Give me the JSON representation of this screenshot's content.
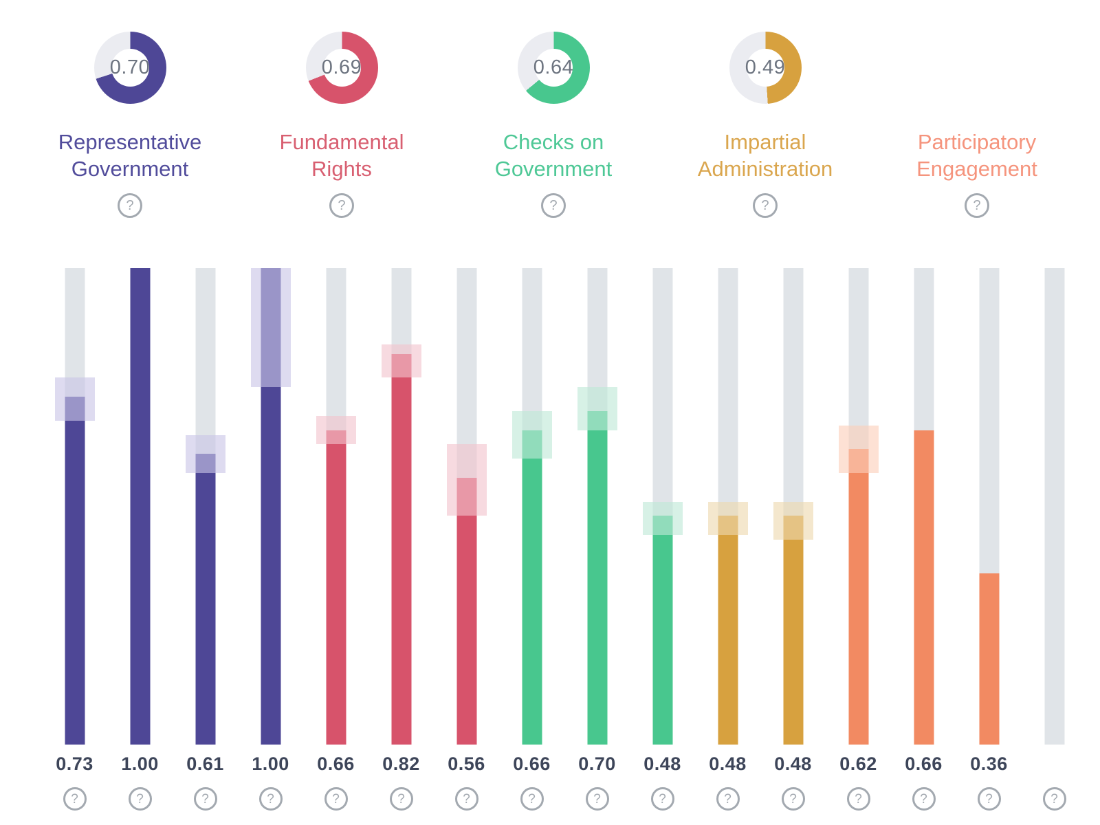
{
  "glyphs": {
    "help": "?"
  },
  "colors": {
    "background": "#ffffff",
    "track": "#e0e4e8",
    "donut_remainder": "#ebecf1",
    "donut_score_text": "#6d7480",
    "bar_value_text": "#3d4559",
    "help_icon": "#a3a9b0"
  },
  "attributes": [
    {
      "name": "Representative Government",
      "label_lines": [
        "Representative",
        "Government"
      ],
      "score": "0.70",
      "color": "#4e4796",
      "label_color": "#514c9b",
      "ci_color": "#c9c5e6"
    },
    {
      "name": "Fundamental Rights",
      "label_lines": [
        "Fundamental",
        "Rights"
      ],
      "score": "0.69",
      "color": "#d7536b",
      "label_color": "#d85f71",
      "ci_color": "#f2c3cd"
    },
    {
      "name": "Checks on Government",
      "label_lines": [
        "Checks on",
        "Government"
      ],
      "score": "0.64",
      "color": "#48c78e",
      "label_color": "#4ec896",
      "ci_color": "#bfe9d6"
    },
    {
      "name": "Impartial Administration",
      "label_lines": [
        "Impartial",
        "Administration"
      ],
      "score": "0.49",
      "color": "#d7a13f",
      "label_color": "#daa64e",
      "ci_color": "#eed9ae"
    },
    {
      "name": "Participatory Engagement",
      "label_lines": [
        "Participatory",
        "Engagement"
      ],
      "score": null,
      "color": "#f28a62",
      "label_color": "#f5947d",
      "ci_color": "#fbcfba"
    }
  ],
  "bars": [
    {
      "value": "0.73",
      "numeric": 0.73,
      "attribute_index": 0,
      "ci": [
        0.68,
        0.77
      ]
    },
    {
      "value": "1.00",
      "numeric": 1.0,
      "attribute_index": 0,
      "ci": null
    },
    {
      "value": "0.61",
      "numeric": 0.61,
      "attribute_index": 0,
      "ci": [
        0.57,
        0.65
      ]
    },
    {
      "value": "1.00",
      "numeric": 1.0,
      "attribute_index": 0,
      "ci": [
        0.75,
        1.0
      ]
    },
    {
      "value": "0.66",
      "numeric": 0.66,
      "attribute_index": 1,
      "ci": [
        0.63,
        0.69
      ]
    },
    {
      "value": "0.82",
      "numeric": 0.82,
      "attribute_index": 1,
      "ci": [
        0.77,
        0.84
      ]
    },
    {
      "value": "0.56",
      "numeric": 0.56,
      "attribute_index": 1,
      "ci": [
        0.48,
        0.63
      ]
    },
    {
      "value": "0.66",
      "numeric": 0.66,
      "attribute_index": 2,
      "ci": [
        0.6,
        0.7
      ]
    },
    {
      "value": "0.70",
      "numeric": 0.7,
      "attribute_index": 2,
      "ci": [
        0.66,
        0.75
      ]
    },
    {
      "value": "0.48",
      "numeric": 0.48,
      "attribute_index": 2,
      "ci": [
        0.44,
        0.51
      ]
    },
    {
      "value": "0.48",
      "numeric": 0.48,
      "attribute_index": 3,
      "ci": [
        0.44,
        0.51
      ]
    },
    {
      "value": "0.48",
      "numeric": 0.48,
      "attribute_index": 3,
      "ci": [
        0.43,
        0.51
      ]
    },
    {
      "value": "0.62",
      "numeric": 0.62,
      "attribute_index": 4,
      "ci": [
        0.57,
        0.67
      ]
    },
    {
      "value": "0.66",
      "numeric": 0.66,
      "attribute_index": 4,
      "ci": null
    },
    {
      "value": "0.36",
      "numeric": 0.36,
      "attribute_index": 4,
      "ci": null
    },
    {
      "value": null,
      "numeric": null,
      "attribute_index": 4,
      "ci": null
    }
  ],
  "chart_data": [
    {
      "type": "pie",
      "subtype": "donut-gauge",
      "title": "Attribute scores",
      "value_range": [
        0,
        1
      ],
      "categories": [
        "Representative Government",
        "Fundamental Rights",
        "Checks on Government",
        "Impartial Administration",
        "Participatory Engagement"
      ],
      "values": [
        0.7,
        0.69,
        0.64,
        0.49,
        null
      ],
      "colors": [
        "#4e4796",
        "#d7536b",
        "#48c78e",
        "#d7a13f",
        "#f28a62"
      ],
      "legend_position": "below-each-gauge"
    },
    {
      "type": "bar",
      "orientation": "vertical",
      "title": "Subattribute scores with confidence intervals",
      "ylim": [
        0,
        1
      ],
      "grid": false,
      "series": [
        {
          "name": "Representative Government",
          "values": [
            0.73,
            1.0,
            0.61,
            1.0
          ],
          "ci": [
            [
              0.68,
              0.77
            ],
            null,
            [
              0.57,
              0.65
            ],
            [
              0.75,
              1.0
            ]
          ]
        },
        {
          "name": "Fundamental Rights",
          "values": [
            0.66,
            0.82,
            0.56
          ],
          "ci": [
            [
              0.63,
              0.69
            ],
            [
              0.77,
              0.84
            ],
            [
              0.48,
              0.63
            ]
          ]
        },
        {
          "name": "Checks on Government",
          "values": [
            0.66,
            0.7,
            0.48
          ],
          "ci": [
            [
              0.6,
              0.7
            ],
            [
              0.66,
              0.75
            ],
            [
              0.44,
              0.51
            ]
          ]
        },
        {
          "name": "Impartial Administration",
          "values": [
            0.48,
            0.48
          ],
          "ci": [
            [
              0.44,
              0.51
            ],
            [
              0.43,
              0.51
            ]
          ]
        },
        {
          "name": "Participatory Engagement",
          "values": [
            0.62,
            0.66,
            0.36,
            null
          ],
          "ci": [
            [
              0.57,
              0.67
            ],
            null,
            null,
            null
          ]
        }
      ]
    }
  ]
}
